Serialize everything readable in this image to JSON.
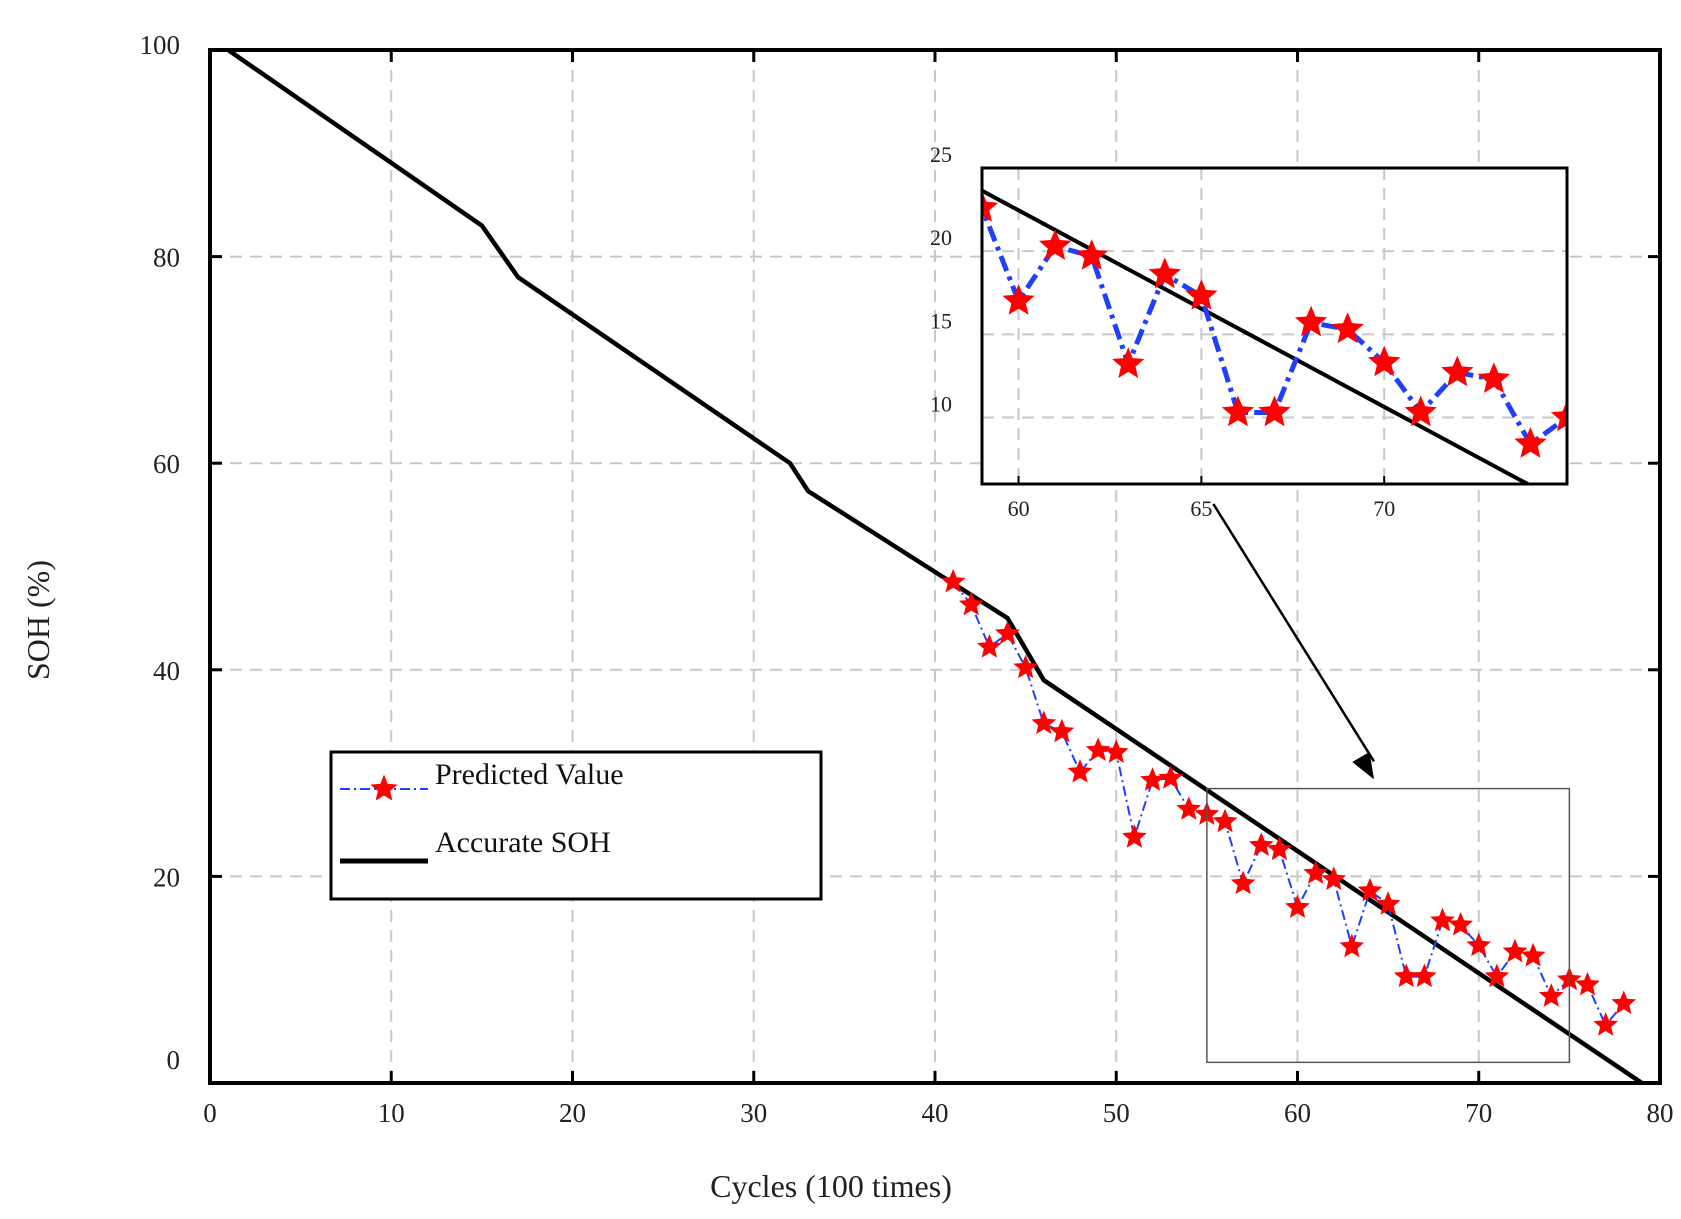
{
  "chart_data": {
    "type": "line",
    "title": "",
    "xlabel": "Cycles (100 times)",
    "ylabel": "SOH (%)",
    "xlim": [
      0,
      80
    ],
    "ylim": [
      0,
      100
    ],
    "xticks": [
      0,
      10,
      20,
      30,
      40,
      50,
      60,
      70,
      80
    ],
    "yticks": [
      0,
      20,
      40,
      60,
      80,
      100
    ],
    "grid": true,
    "legend_position": "center-left",
    "series": [
      {
        "name": "Accurate SOH",
        "style": "solid-line",
        "color": "#000000",
        "x": [
          1,
          15,
          17,
          32,
          33,
          44,
          46,
          79
        ],
        "y": [
          100,
          83,
          78,
          60,
          57.3,
          45,
          39,
          0
        ]
      },
      {
        "name": "Predicted Value",
        "style": "dash-dot-with-star-markers",
        "color": "#1f3fff",
        "marker_color": "#ff0000",
        "x": [
          41,
          42,
          43,
          44,
          45,
          46,
          47,
          48,
          49,
          50,
          51,
          52,
          53,
          54,
          55,
          56,
          57,
          58,
          59,
          60,
          61,
          62,
          63,
          64,
          65,
          66,
          67,
          68,
          69,
          70,
          71,
          72,
          73,
          74,
          75,
          76,
          77,
          78
        ],
        "y": [
          48.5,
          46.3,
          42.2,
          43.5,
          40.2,
          34.8,
          34.0,
          30.1,
          32.2,
          32.0,
          23.8,
          29.3,
          29.5,
          26.5,
          26.0,
          25.3,
          19.3,
          23.0,
          22.6,
          17.0,
          20.3,
          19.7,
          13.2,
          18.6,
          17.3,
          10.3,
          10.3,
          15.7,
          15.3,
          13.3,
          10.3,
          12.7,
          12.3,
          8.4,
          10.0,
          9.5,
          5.6,
          7.7
        ]
      }
    ],
    "annotation": {
      "zoom_box_x": [
        55,
        75
      ],
      "zoom_box_y": [
        2,
        28.5
      ],
      "arrow_from_inset_x": 65,
      "arrow_to": [
        64,
        29
      ]
    },
    "inset": {
      "xlim": [
        59,
        75
      ],
      "ylim": [
        6,
        25
      ],
      "xticks": [
        60,
        65,
        70
      ],
      "yticks": [
        10,
        15,
        20,
        25
      ],
      "grid": true
    }
  }
}
